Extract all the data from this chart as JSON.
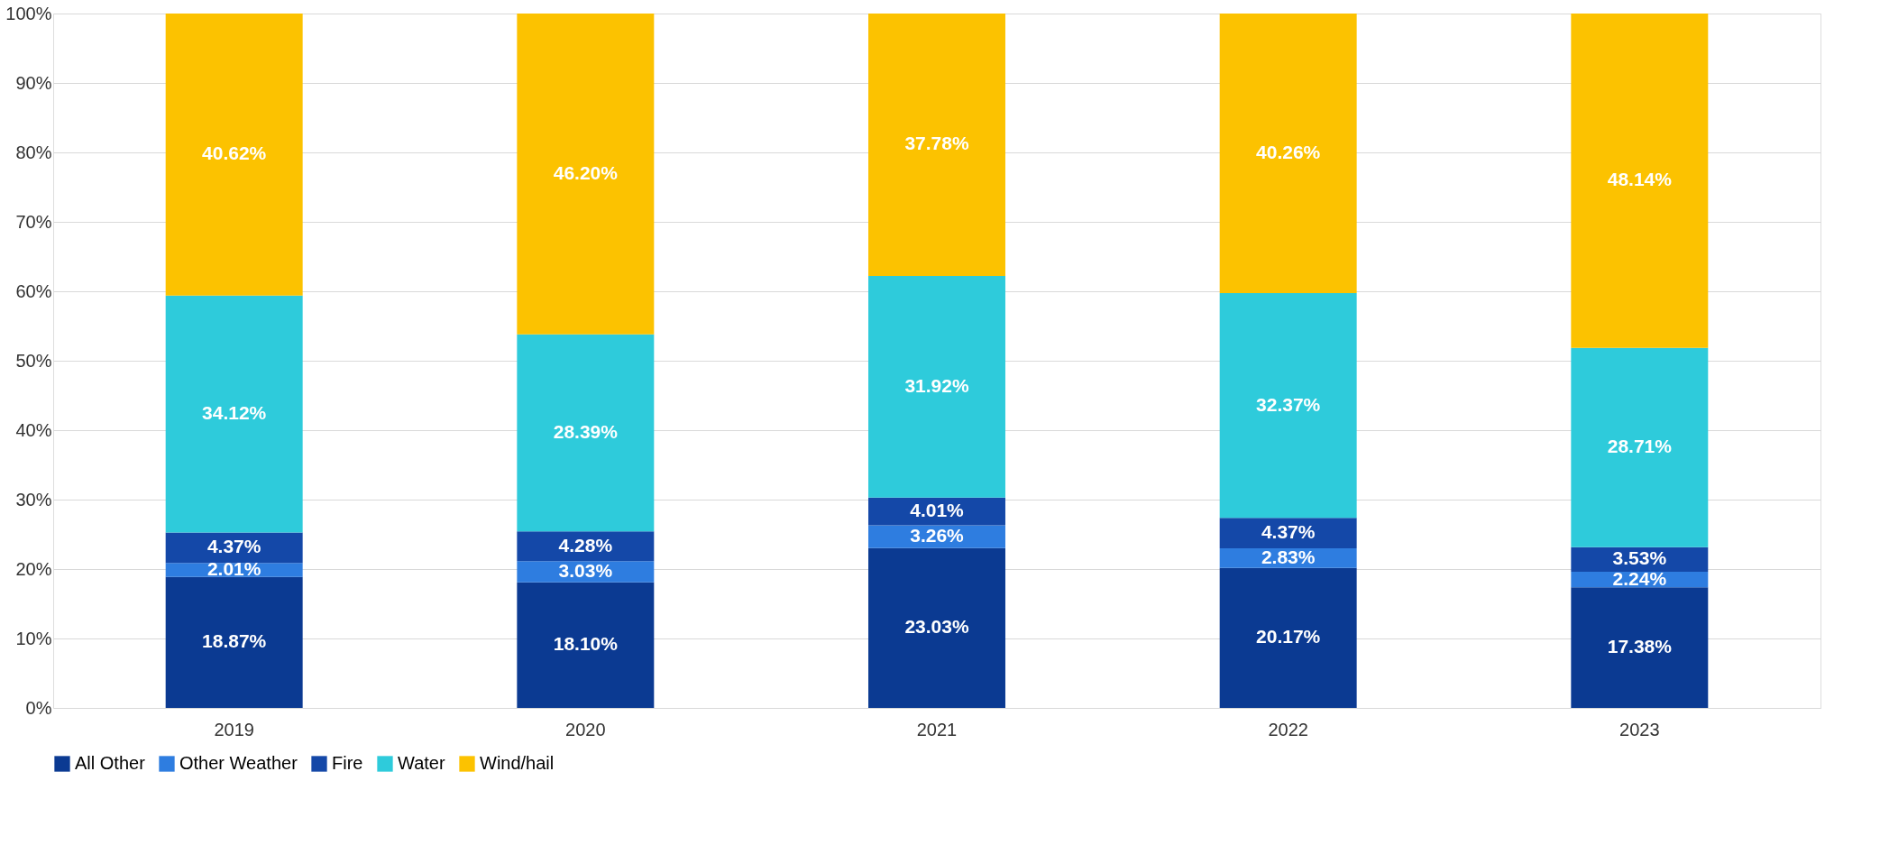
{
  "chart_data": {
    "type": "bar",
    "stacked": true,
    "categories": [
      "2019",
      "2020",
      "2021",
      "2022",
      "2023"
    ],
    "series": [
      {
        "name": "All Other",
        "color": "#0b3a92",
        "values": [
          18.87,
          18.1,
          23.03,
          20.17,
          17.38
        ],
        "value_labels": [
          "18.87%",
          "18.10%",
          "23.03%",
          "20.17%",
          "17.38%"
        ]
      },
      {
        "name": "Other Weather",
        "color": "#2e7de0",
        "values": [
          2.01,
          3.03,
          3.26,
          2.83,
          2.24
        ],
        "value_labels": [
          "2.01%",
          "3.03%",
          "3.26%",
          "2.83%",
          "2.24%"
        ]
      },
      {
        "name": "Fire",
        "color": "#1448a8",
        "values": [
          4.37,
          4.28,
          4.01,
          4.37,
          3.53
        ],
        "value_labels": [
          "4.37%",
          "4.28%",
          "4.01%",
          "4.37%",
          "3.53%"
        ]
      },
      {
        "name": "Water",
        "color": "#2ecbdb",
        "values": [
          34.12,
          28.39,
          31.92,
          32.37,
          28.71
        ],
        "value_labels": [
          "34.12%",
          "28.39%",
          "31.92%",
          "32.37%",
          "28.71%"
        ]
      },
      {
        "name": "Wind/hail",
        "color": "#fcc200",
        "values": [
          40.62,
          46.2,
          37.78,
          40.26,
          48.14
        ],
        "value_labels": [
          "40.62%",
          "46.20%",
          "37.78%",
          "40.26%",
          "48.14%"
        ]
      }
    ],
    "ylim": [
      0,
      100
    ],
    "yticks": [
      {
        "value": 0,
        "label": "0%"
      },
      {
        "value": 10,
        "label": "10%"
      },
      {
        "value": 20,
        "label": "20%"
      },
      {
        "value": 30,
        "label": "30%"
      },
      {
        "value": 40,
        "label": "40%"
      },
      {
        "value": 50,
        "label": "50%"
      },
      {
        "value": 60,
        "label": "60%"
      },
      {
        "value": 70,
        "label": "70%"
      },
      {
        "value": 80,
        "label": "80%"
      },
      {
        "value": 90,
        "label": "90%"
      },
      {
        "value": 100,
        "label": "100%"
      }
    ],
    "grid": "y",
    "legend": "bottom"
  }
}
